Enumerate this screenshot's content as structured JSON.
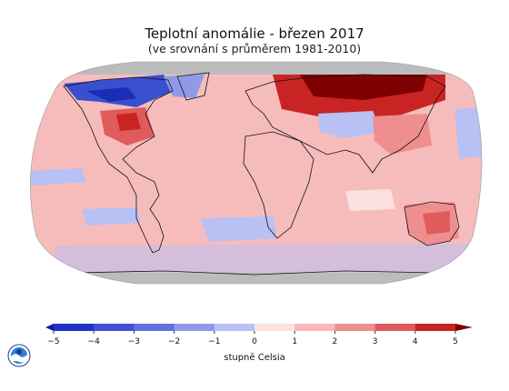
{
  "title": "Teplotní anomálie - březen 2017",
  "subtitle": "(ve srovnání s průměrem 1981-2010)",
  "legend": {
    "unit_label": "stupně Celsia",
    "ticks": [
      "−5",
      "−4",
      "−3",
      "−2",
      "−1",
      "0",
      "1",
      "2",
      "3",
      "4",
      "5"
    ],
    "min": -5,
    "max": 5,
    "colors": [
      "#0a1bb0",
      "#2233c8",
      "#3f51d6",
      "#6272e0",
      "#8e9ae9",
      "#b9c0f3",
      "#fde0e0",
      "#f8b8b8",
      "#ef8e8e",
      "#e05c5c",
      "#c92424",
      "#7f0000"
    ]
  },
  "map": {
    "ocean_base_color": "#f6bcbc",
    "no_data_color": "#b9b9b9",
    "land_outline_color": "#111111",
    "anomaly_regions": [
      {
        "name": "Canada / Arctic",
        "anomaly": -3
      },
      {
        "name": "Greenland",
        "anomaly": -2
      },
      {
        "name": "Eastern United States",
        "anomaly": 3
      },
      {
        "name": "Western Russia",
        "anomaly": 5
      },
      {
        "name": "Siberia",
        "anomaly": 4
      },
      {
        "name": "Central Asia",
        "anomaly": -1
      },
      {
        "name": "Australia",
        "anomaly": 3
      },
      {
        "name": "Southern Ocean",
        "anomaly": -1
      },
      {
        "name": "Eastern Pacific",
        "anomaly": -1
      },
      {
        "name": "Indian Ocean",
        "anomaly": 1
      }
    ]
  },
  "logo": {
    "icon": "noaa-logo-icon"
  }
}
